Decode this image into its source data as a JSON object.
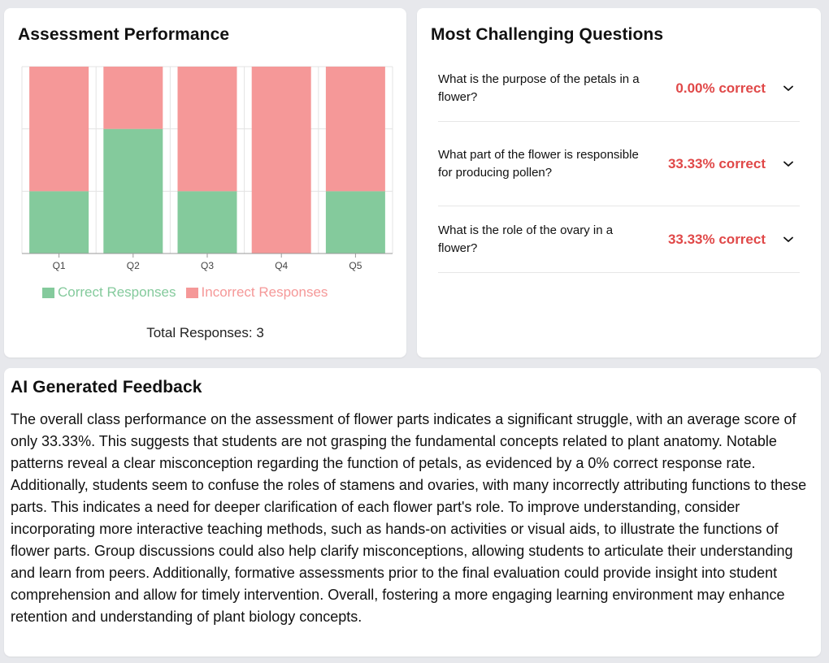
{
  "performance": {
    "title": "Assessment Performance",
    "total_label": "Total Responses: 3"
  },
  "chart_data": {
    "type": "bar",
    "stacked": true,
    "categories": [
      "Q1",
      "Q2",
      "Q3",
      "Q4",
      "Q5"
    ],
    "series": [
      {
        "name": "Correct Responses",
        "values": [
          1,
          2,
          1,
          0,
          1
        ],
        "color": "#84ca9c"
      },
      {
        "name": "Incorrect Responses",
        "values": [
          2,
          1,
          2,
          3,
          2
        ],
        "color": "#f59898"
      }
    ],
    "ylim": [
      0,
      3
    ],
    "grid": true,
    "legend": "bottom"
  },
  "challenging": {
    "title": "Most Challenging Questions",
    "questions": [
      {
        "text": "What is the purpose of the petals in a flower?",
        "score": "0.00% correct",
        "icon": "chevron-down-icon"
      },
      {
        "text": "What part of the flower is responsible for producing pollen?",
        "score": "33.33% correct",
        "icon": "chevron-down-icon"
      },
      {
        "text": "What is the role of the ovary in a flower?",
        "score": "33.33% correct",
        "icon": "chevron-down-icon"
      }
    ]
  },
  "feedback": {
    "title": "AI Generated Feedback",
    "body": "The overall class performance on the assessment of flower parts indicates a significant struggle, with an average score of only 33.33%. This suggests that students are not grasping the fundamental concepts related to plant anatomy. Notable patterns reveal a clear misconception regarding the function of petals, as evidenced by a 0% correct response rate. Additionally, students seem to confuse the roles of stamens and ovaries, with many incorrectly attributing functions to these parts. This indicates a need for deeper clarification of each flower part's role. To improve understanding, consider incorporating more interactive teaching methods, such as hands-on activities or visual aids, to illustrate the functions of flower parts. Group discussions could also help clarify misconceptions, allowing students to articulate their understanding and learn from peers. Additionally, formative assessments prior to the final evaluation could provide insight into student comprehension and allow for timely intervention. Overall, fostering a more engaging learning environment may enhance retention and understanding of plant biology concepts."
  }
}
